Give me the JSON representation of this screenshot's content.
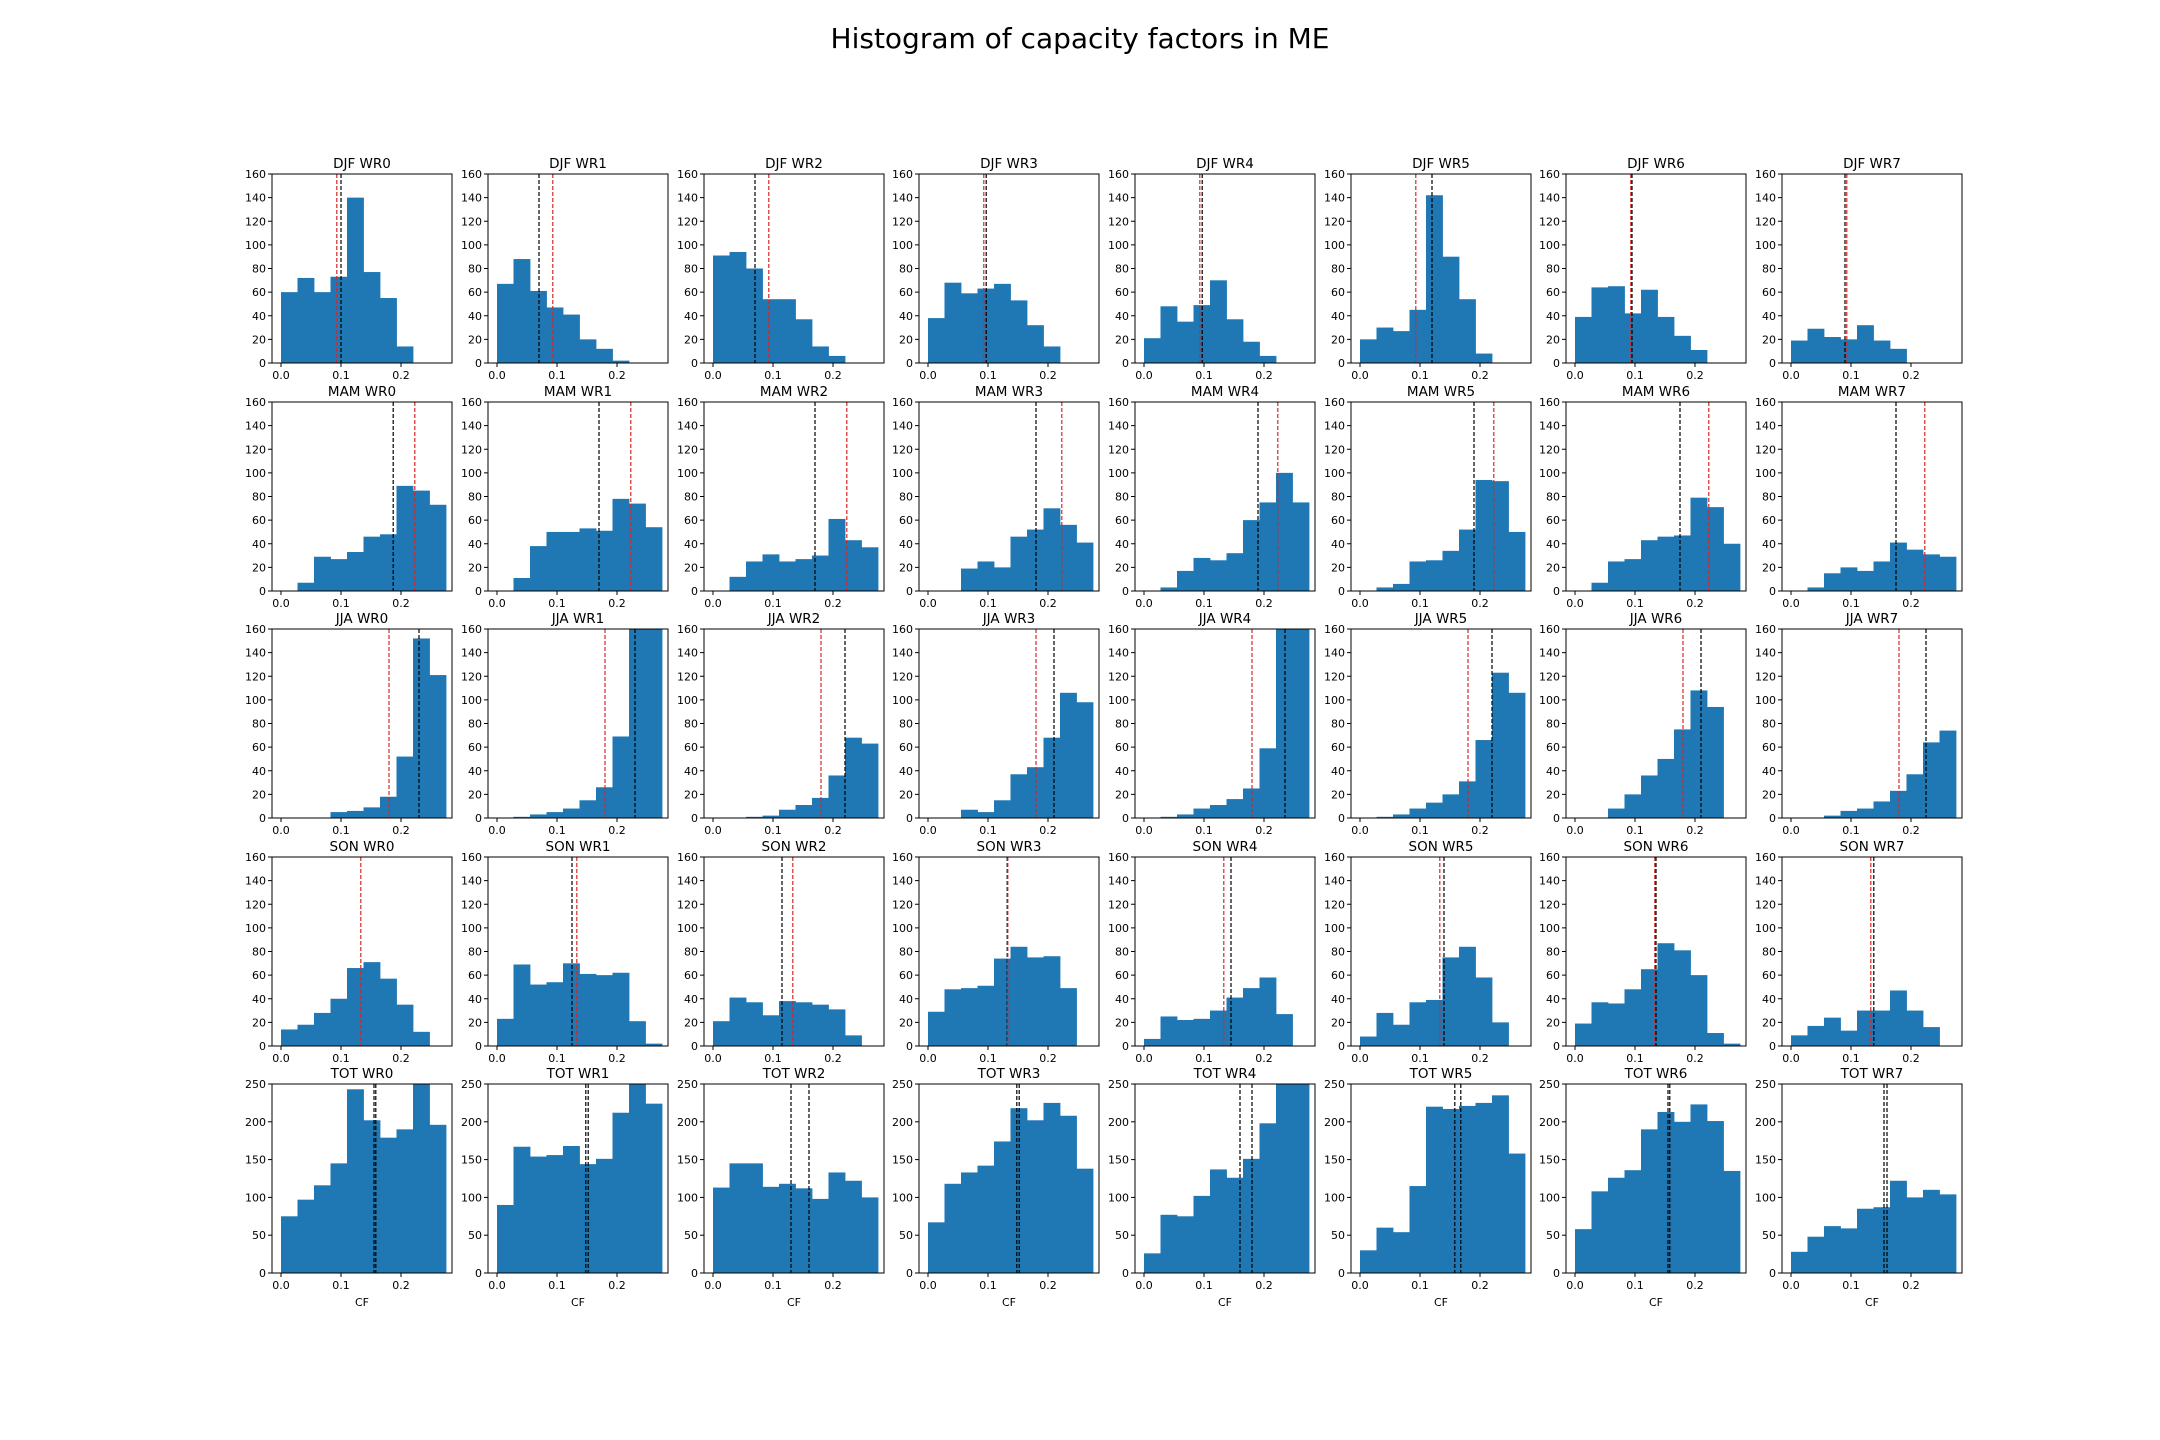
{
  "chart_data": {
    "title": "Histogram of capacity factors in ME",
    "type": "bar",
    "bar_color": "#1f77b4",
    "line_colors": {
      "black": "#000000",
      "red": "#d62728"
    },
    "xlim": [
      -0.015,
      0.285
    ],
    "xticks": [
      0.0,
      0.1,
      0.2
    ],
    "xtick_labels": [
      "0.0",
      "0.1",
      "0.2"
    ],
    "bin_edges": [
      0.0,
      0.0275,
      0.055,
      0.0825,
      0.11,
      0.1375,
      0.165,
      0.1925,
      0.22,
      0.2475,
      0.275
    ],
    "xlabel": "CF",
    "rows": [
      {
        "ylim": [
          0,
          160
        ],
        "yticks": [
          0,
          20,
          40,
          60,
          80,
          100,
          120,
          140,
          160
        ]
      },
      {
        "ylim": [
          0,
          160
        ],
        "yticks": [
          0,
          20,
          40,
          60,
          80,
          100,
          120,
          140,
          160
        ]
      },
      {
        "ylim": [
          0,
          160
        ],
        "yticks": [
          0,
          20,
          40,
          60,
          80,
          100,
          120,
          140,
          160
        ]
      },
      {
        "ylim": [
          0,
          160
        ],
        "yticks": [
          0,
          20,
          40,
          60,
          80,
          100,
          120,
          140,
          160
        ]
      },
      {
        "ylim": [
          0,
          250
        ],
        "yticks": [
          0,
          50,
          100,
          150,
          200,
          250
        ]
      }
    ],
    "panels": [
      {
        "title": "DJF WR0",
        "values": [
          60,
          72,
          60,
          73,
          140,
          77,
          55,
          14,
          0,
          0
        ],
        "lines": [
          {
            "x": 0.093,
            "color": "red"
          },
          {
            "x": 0.1,
            "color": "black"
          }
        ]
      },
      {
        "title": "DJF WR1",
        "values": [
          67,
          88,
          61,
          47,
          41,
          20,
          12,
          2,
          0,
          0
        ],
        "lines": [
          {
            "x": 0.07,
            "color": "black"
          },
          {
            "x": 0.093,
            "color": "red"
          }
        ]
      },
      {
        "title": "DJF WR2",
        "values": [
          91,
          94,
          80,
          54,
          54,
          37,
          14,
          6,
          0,
          0
        ],
        "lines": [
          {
            "x": 0.07,
            "color": "black"
          },
          {
            "x": 0.093,
            "color": "red"
          }
        ]
      },
      {
        "title": "DJF WR3",
        "values": [
          38,
          68,
          59,
          63,
          67,
          53,
          32,
          14,
          0,
          0
        ],
        "lines": [
          {
            "x": 0.093,
            "color": "red"
          },
          {
            "x": 0.097,
            "color": "black"
          }
        ]
      },
      {
        "title": "DJF WR4",
        "values": [
          21,
          48,
          35,
          49,
          70,
          37,
          18,
          6,
          0,
          0
        ],
        "lines": [
          {
            "x": 0.093,
            "color": "red"
          },
          {
            "x": 0.097,
            "color": "black"
          }
        ]
      },
      {
        "title": "DJF WR5",
        "values": [
          20,
          30,
          27,
          45,
          142,
          90,
          54,
          8,
          0,
          0
        ],
        "lines": [
          {
            "x": 0.093,
            "color": "red"
          },
          {
            "x": 0.12,
            "color": "black"
          }
        ]
      },
      {
        "title": "DJF WR6",
        "values": [
          39,
          64,
          65,
          42,
          62,
          39,
          23,
          11,
          0,
          0
        ],
        "lines": [
          {
            "x": 0.093,
            "color": "red"
          },
          {
            "x": 0.095,
            "color": "black"
          }
        ]
      },
      {
        "title": "DJF WR7",
        "values": [
          19,
          29,
          22,
          20,
          32,
          19,
          12,
          0,
          0,
          0
        ],
        "lines": [
          {
            "x": 0.093,
            "color": "red"
          },
          {
            "x": 0.09,
            "color": "black"
          }
        ]
      },
      {
        "title": "MAM WR0",
        "values": [
          0,
          7,
          29,
          27,
          33,
          46,
          48,
          89,
          85,
          73
        ],
        "lines": [
          {
            "x": 0.187,
            "color": "black"
          },
          {
            "x": 0.223,
            "color": "red"
          }
        ]
      },
      {
        "title": "MAM WR1",
        "values": [
          0,
          11,
          38,
          50,
          50,
          53,
          51,
          78,
          74,
          54
        ],
        "lines": [
          {
            "x": 0.17,
            "color": "black"
          },
          {
            "x": 0.223,
            "color": "red"
          }
        ]
      },
      {
        "title": "MAM WR2",
        "values": [
          0,
          12,
          25,
          31,
          25,
          27,
          30,
          61,
          43,
          37
        ],
        "lines": [
          {
            "x": 0.17,
            "color": "black"
          },
          {
            "x": 0.223,
            "color": "red"
          }
        ]
      },
      {
        "title": "MAM WR3",
        "values": [
          0,
          0,
          19,
          25,
          20,
          46,
          52,
          70,
          56,
          41
        ],
        "lines": [
          {
            "x": 0.18,
            "color": "black"
          },
          {
            "x": 0.223,
            "color": "red"
          }
        ]
      },
      {
        "title": "MAM WR4",
        "values": [
          0,
          3,
          17,
          28,
          26,
          32,
          60,
          75,
          100,
          75
        ],
        "lines": [
          {
            "x": 0.19,
            "color": "black"
          },
          {
            "x": 0.223,
            "color": "red"
          }
        ]
      },
      {
        "title": "MAM WR5",
        "values": [
          0,
          3,
          6,
          25,
          26,
          34,
          52,
          94,
          93,
          50
        ],
        "lines": [
          {
            "x": 0.19,
            "color": "black"
          },
          {
            "x": 0.223,
            "color": "red"
          }
        ]
      },
      {
        "title": "MAM WR6",
        "values": [
          0,
          7,
          25,
          27,
          43,
          46,
          47,
          79,
          71,
          40
        ],
        "lines": [
          {
            "x": 0.175,
            "color": "black"
          },
          {
            "x": 0.223,
            "color": "red"
          }
        ]
      },
      {
        "title": "MAM WR7",
        "values": [
          0,
          3,
          15,
          20,
          17,
          25,
          41,
          35,
          31,
          29
        ],
        "lines": [
          {
            "x": 0.175,
            "color": "black"
          },
          {
            "x": 0.223,
            "color": "red"
          }
        ]
      },
      {
        "title": "JJA WR0",
        "values": [
          0,
          0,
          0,
          5,
          6,
          9,
          18,
          52,
          152,
          121
        ],
        "lines": [
          {
            "x": 0.18,
            "color": "red"
          },
          {
            "x": 0.23,
            "color": "black"
          }
        ]
      },
      {
        "title": "JJA WR1",
        "values": [
          0,
          1,
          3,
          5,
          8,
          15,
          26,
          69,
          160,
          160
        ],
        "lines": [
          {
            "x": 0.18,
            "color": "red"
          },
          {
            "x": 0.23,
            "color": "black"
          }
        ]
      },
      {
        "title": "JJA WR2",
        "values": [
          0,
          0,
          1,
          2,
          7,
          11,
          17,
          36,
          68,
          63
        ],
        "lines": [
          {
            "x": 0.18,
            "color": "red"
          },
          {
            "x": 0.22,
            "color": "black"
          }
        ]
      },
      {
        "title": "JJA WR3",
        "values": [
          0,
          0,
          7,
          5,
          15,
          37,
          43,
          68,
          106,
          98
        ],
        "lines": [
          {
            "x": 0.18,
            "color": "red"
          },
          {
            "x": 0.21,
            "color": "black"
          }
        ]
      },
      {
        "title": "JJA WR4",
        "values": [
          0,
          1,
          3,
          8,
          11,
          16,
          25,
          59,
          160,
          160
        ],
        "lines": [
          {
            "x": 0.18,
            "color": "red"
          },
          {
            "x": 0.235,
            "color": "black"
          }
        ]
      },
      {
        "title": "JJA WR5",
        "values": [
          0,
          1,
          3,
          8,
          13,
          20,
          31,
          66,
          123,
          106
        ],
        "lines": [
          {
            "x": 0.18,
            "color": "red"
          },
          {
            "x": 0.22,
            "color": "black"
          }
        ]
      },
      {
        "title": "JJA WR6",
        "values": [
          0,
          0,
          8,
          20,
          36,
          50,
          75,
          108,
          94,
          0
        ],
        "lines": [
          {
            "x": 0.18,
            "color": "red"
          },
          {
            "x": 0.21,
            "color": "black"
          }
        ]
      },
      {
        "title": "JJA WR7",
        "values": [
          0,
          0,
          2,
          6,
          8,
          14,
          23,
          37,
          64,
          74
        ],
        "lines": [
          {
            "x": 0.18,
            "color": "red"
          },
          {
            "x": 0.225,
            "color": "black"
          }
        ]
      },
      {
        "title": "SON WR0",
        "values": [
          14,
          18,
          28,
          40,
          66,
          71,
          57,
          35,
          12,
          0
        ],
        "lines": [
          {
            "x": 0.133,
            "color": "red"
          }
        ]
      },
      {
        "title": "SON WR1",
        "values": [
          23,
          69,
          52,
          54,
          70,
          61,
          60,
          62,
          21,
          2
        ],
        "lines": [
          {
            "x": 0.125,
            "color": "black"
          },
          {
            "x": 0.133,
            "color": "red"
          }
        ]
      },
      {
        "title": "SON WR2",
        "values": [
          21,
          41,
          37,
          26,
          38,
          37,
          35,
          31,
          9,
          0
        ],
        "lines": [
          {
            "x": 0.115,
            "color": "black"
          },
          {
            "x": 0.133,
            "color": "red"
          }
        ]
      },
      {
        "title": "SON WR3",
        "values": [
          29,
          48,
          49,
          51,
          74,
          84,
          75,
          76,
          49,
          0
        ],
        "lines": [
          {
            "x": 0.132,
            "color": "black"
          },
          {
            "x": 0.133,
            "color": "red"
          }
        ]
      },
      {
        "title": "SON WR4",
        "values": [
          6,
          25,
          22,
          23,
          30,
          41,
          49,
          58,
          27,
          0
        ],
        "lines": [
          {
            "x": 0.133,
            "color": "red"
          },
          {
            "x": 0.145,
            "color": "black"
          }
        ]
      },
      {
        "title": "SON WR5",
        "values": [
          8,
          28,
          18,
          37,
          39,
          75,
          84,
          58,
          20,
          0
        ],
        "lines": [
          {
            "x": 0.133,
            "color": "red"
          },
          {
            "x": 0.14,
            "color": "black"
          }
        ]
      },
      {
        "title": "SON WR6",
        "values": [
          19,
          37,
          36,
          48,
          65,
          87,
          81,
          60,
          11,
          2
        ],
        "lines": [
          {
            "x": 0.133,
            "color": "red"
          },
          {
            "x": 0.135,
            "color": "black"
          }
        ]
      },
      {
        "title": "SON WR7",
        "values": [
          9,
          17,
          24,
          13,
          30,
          30,
          47,
          30,
          16,
          0
        ],
        "lines": [
          {
            "x": 0.133,
            "color": "red"
          },
          {
            "x": 0.138,
            "color": "black"
          }
        ]
      },
      {
        "title": "TOT WR0",
        "values": [
          75,
          97,
          116,
          145,
          243,
          202,
          179,
          190,
          250,
          196
        ],
        "lines": [
          {
            "x": 0.155,
            "color": "black"
          },
          {
            "x": 0.158,
            "color": "black"
          }
        ]
      },
      {
        "title": "TOT WR1",
        "values": [
          90,
          167,
          154,
          156,
          168,
          144,
          151,
          212,
          250,
          224
        ],
        "lines": [
          {
            "x": 0.148,
            "color": "black"
          },
          {
            "x": 0.152,
            "color": "black"
          }
        ]
      },
      {
        "title": "TOT WR2",
        "values": [
          113,
          145,
          145,
          114,
          118,
          112,
          98,
          133,
          122,
          100
        ],
        "lines": [
          {
            "x": 0.13,
            "color": "black"
          },
          {
            "x": 0.16,
            "color": "black"
          }
        ]
      },
      {
        "title": "TOT WR3",
        "values": [
          67,
          118,
          133,
          142,
          174,
          218,
          202,
          225,
          208,
          138
        ],
        "lines": [
          {
            "x": 0.148,
            "color": "black"
          },
          {
            "x": 0.152,
            "color": "black"
          }
        ]
      },
      {
        "title": "TOT WR4",
        "values": [
          26,
          77,
          75,
          102,
          137,
          126,
          151,
          198,
          250,
          250
        ],
        "lines": [
          {
            "x": 0.16,
            "color": "black"
          },
          {
            "x": 0.18,
            "color": "black"
          }
        ]
      },
      {
        "title": "TOT WR5",
        "values": [
          30,
          60,
          54,
          115,
          220,
          217,
          221,
          225,
          235,
          158
        ],
        "lines": [
          {
            "x": 0.158,
            "color": "black"
          },
          {
            "x": 0.168,
            "color": "black"
          }
        ]
      },
      {
        "title": "TOT WR6",
        "values": [
          58,
          108,
          126,
          136,
          190,
          213,
          200,
          223,
          201,
          135
        ],
        "lines": [
          {
            "x": 0.155,
            "color": "black"
          },
          {
            "x": 0.158,
            "color": "black"
          }
        ]
      },
      {
        "title": "TOT WR7",
        "values": [
          28,
          48,
          62,
          59,
          85,
          87,
          122,
          100,
          110,
          104
        ],
        "lines": [
          {
            "x": 0.155,
            "color": "black"
          },
          {
            "x": 0.16,
            "color": "black"
          }
        ]
      }
    ]
  }
}
